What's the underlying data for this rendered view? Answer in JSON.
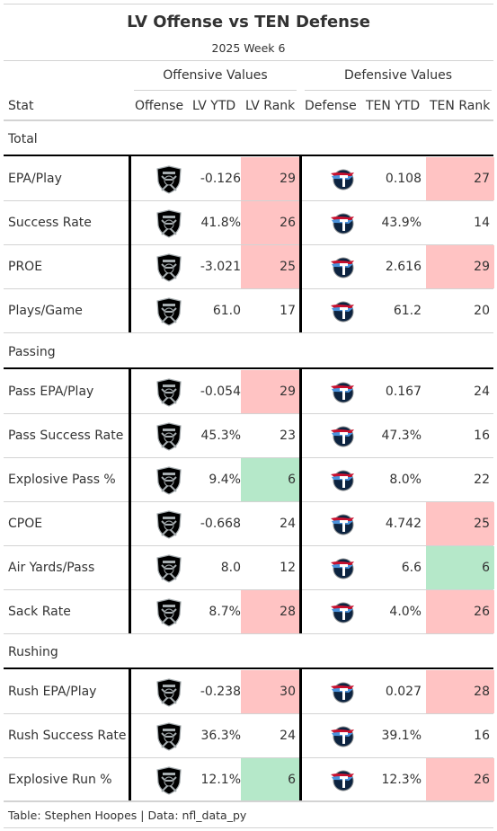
{
  "title": "LV Offense vs TEN Defense",
  "subtitle": "2025 Week 6",
  "spanners": {
    "offense": "Offensive Values",
    "defense": "Defensive Values"
  },
  "columns": {
    "stat": "Stat",
    "offense": "Offense",
    "lv_ytd": "LV YTD",
    "lv_rank": "LV Rank",
    "defense": "Defense",
    "ten_ytd": "TEN YTD",
    "ten_rank": "TEN Rank"
  },
  "groups": {
    "total": "Total",
    "passing": "Passing",
    "rushing": "Rushing"
  },
  "source_note": "Table: Stephen Hoopes | Data: nfl_data_py",
  "colors": {
    "bad": "#ffc3c3",
    "good": "#b5e8c9",
    "raiders": "#000000",
    "titans_navy": "#0C2340",
    "titans_blue": "#4B92DB",
    "titans_red": "#C8102E"
  },
  "icons": {
    "offense": "raiders-logo-icon",
    "defense": "titans-logo-icon"
  },
  "chart_data": {
    "type": "table",
    "title": "LV Offense vs TEN Defense",
    "subtitle": "2025 Week 6",
    "columns": [
      "Stat",
      "Offense",
      "LV YTD",
      "LV Rank",
      "Defense",
      "TEN YTD",
      "TEN Rank"
    ],
    "rows": [
      {
        "group": "Total",
        "stat": "EPA/Play",
        "lv_ytd": "-0.126",
        "lv_rank": 29,
        "lv_flag": "bad",
        "ten_ytd": "0.108",
        "ten_rank": 27,
        "ten_flag": "bad"
      },
      {
        "group": "Total",
        "stat": "Success Rate",
        "lv_ytd": "41.8%",
        "lv_rank": 26,
        "lv_flag": "bad",
        "ten_ytd": "43.9%",
        "ten_rank": 14,
        "ten_flag": ""
      },
      {
        "group": "Total",
        "stat": "PROE",
        "lv_ytd": "-3.021",
        "lv_rank": 25,
        "lv_flag": "bad",
        "ten_ytd": "2.616",
        "ten_rank": 29,
        "ten_flag": "bad"
      },
      {
        "group": "Total",
        "stat": "Plays/Game",
        "lv_ytd": "61.0",
        "lv_rank": 17,
        "lv_flag": "",
        "ten_ytd": "61.2",
        "ten_rank": 20,
        "ten_flag": ""
      },
      {
        "group": "Passing",
        "stat": "Pass EPA/Play",
        "lv_ytd": "-0.054",
        "lv_rank": 29,
        "lv_flag": "bad",
        "ten_ytd": "0.167",
        "ten_rank": 24,
        "ten_flag": ""
      },
      {
        "group": "Passing",
        "stat": "Pass Success Rate",
        "lv_ytd": "45.3%",
        "lv_rank": 23,
        "lv_flag": "",
        "ten_ytd": "47.3%",
        "ten_rank": 16,
        "ten_flag": ""
      },
      {
        "group": "Passing",
        "stat": "Explosive Pass %",
        "lv_ytd": "9.4%",
        "lv_rank": 6,
        "lv_flag": "good",
        "ten_ytd": "8.0%",
        "ten_rank": 22,
        "ten_flag": ""
      },
      {
        "group": "Passing",
        "stat": "CPOE",
        "lv_ytd": "-0.668",
        "lv_rank": 24,
        "lv_flag": "",
        "ten_ytd": "4.742",
        "ten_rank": 25,
        "ten_flag": "bad"
      },
      {
        "group": "Passing",
        "stat": "Air Yards/Pass",
        "lv_ytd": "8.0",
        "lv_rank": 12,
        "lv_flag": "",
        "ten_ytd": "6.6",
        "ten_rank": 6,
        "ten_flag": "good"
      },
      {
        "group": "Passing",
        "stat": "Sack Rate",
        "lv_ytd": "8.7%",
        "lv_rank": 28,
        "lv_flag": "bad",
        "ten_ytd": "4.0%",
        "ten_rank": 26,
        "ten_flag": "bad"
      },
      {
        "group": "Rushing",
        "stat": "Rush EPA/Play",
        "lv_ytd": "-0.238",
        "lv_rank": 30,
        "lv_flag": "bad",
        "ten_ytd": "0.027",
        "ten_rank": 28,
        "ten_flag": "bad"
      },
      {
        "group": "Rushing",
        "stat": "Rush Success Rate",
        "lv_ytd": "36.3%",
        "lv_rank": 24,
        "lv_flag": "",
        "ten_ytd": "39.1%",
        "ten_rank": 16,
        "ten_flag": ""
      },
      {
        "group": "Rushing",
        "stat": "Explosive Run %",
        "lv_ytd": "12.1%",
        "lv_rank": 6,
        "lv_flag": "good",
        "ten_ytd": "12.3%",
        "ten_rank": 26,
        "ten_flag": "bad"
      }
    ]
  }
}
